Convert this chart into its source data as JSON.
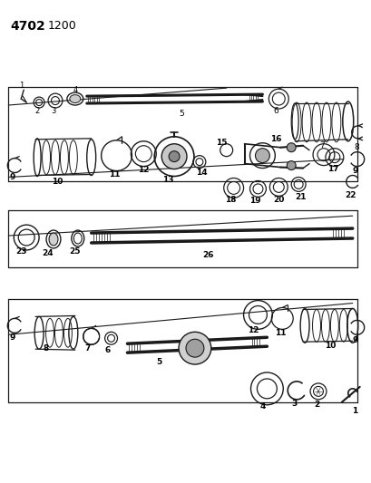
{
  "title_line1": "4702",
  "title_line2": "1200",
  "bg_color": "#ffffff",
  "line_color": "#1a1a1a",
  "text_color": "#000000",
  "fig_width": 4.09,
  "fig_height": 5.33,
  "dpi": 100
}
